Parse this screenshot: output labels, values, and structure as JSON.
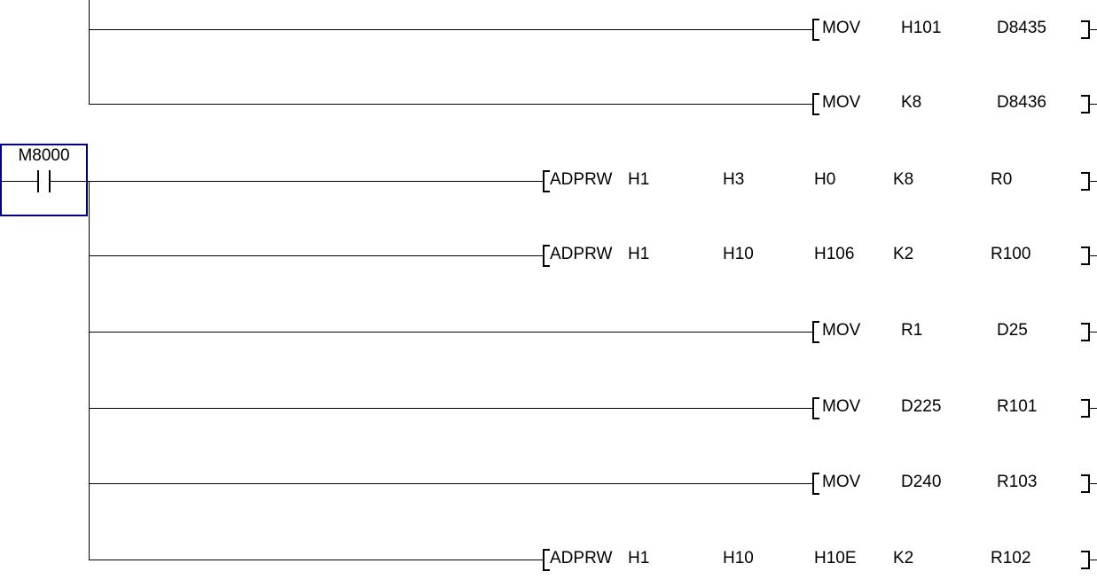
{
  "editor": {
    "background": "#ffffff",
    "line_color": "#000000",
    "text_color": "#000000",
    "cursor_border_color": "#000084"
  },
  "contact": {
    "label": "M8000",
    "type": "normally-open-contact",
    "selected": true
  },
  "rungs": [
    {
      "instruction": "MOV",
      "operands": [
        "H101",
        "D8435"
      ]
    },
    {
      "instruction": "MOV",
      "operands": [
        "K8",
        "D8436"
      ]
    },
    {
      "instruction": "ADPRW",
      "operands": [
        "H1",
        "H3",
        "H0",
        "K8",
        "R0"
      ]
    },
    {
      "instruction": "ADPRW",
      "operands": [
        "H1",
        "H10",
        "H106",
        "K2",
        "R100"
      ]
    },
    {
      "instruction": "MOV",
      "operands": [
        "R1",
        "D25"
      ]
    },
    {
      "instruction": "MOV",
      "operands": [
        "D225",
        "R101"
      ]
    },
    {
      "instruction": "MOV",
      "operands": [
        "D240",
        "R103"
      ]
    },
    {
      "instruction": "ADPRW",
      "operands": [
        "H1",
        "H10",
        "H10E",
        "K2",
        "R102"
      ]
    }
  ]
}
